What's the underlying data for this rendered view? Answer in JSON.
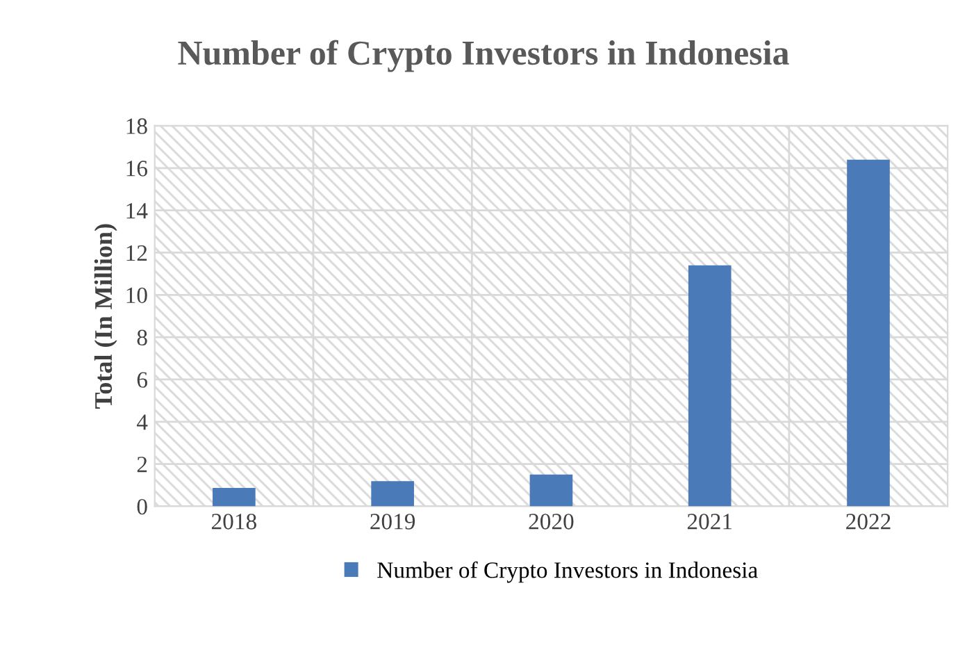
{
  "chart_data": {
    "type": "bar",
    "title": "Number of Crypto Investors in Indonesia",
    "ylabel": "Total (In Million)",
    "categories": [
      "2018",
      "2019",
      "2020",
      "2021",
      "2022"
    ],
    "series": [
      {
        "name": "Number of Crypto Investors in Indonesia",
        "color": "#4a7ab8",
        "values": [
          0.87,
          1.19,
          1.5,
          11.4,
          16.4
        ]
      }
    ],
    "ylim": [
      0,
      18
    ],
    "yticks": [
      0,
      2,
      4,
      6,
      8,
      10,
      12,
      14,
      16,
      18
    ],
    "grid": true,
    "legend": "bottom"
  }
}
